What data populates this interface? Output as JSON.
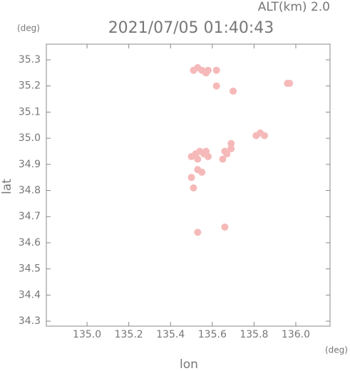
{
  "chart_data": {
    "type": "scatter",
    "title": "2021/07/05 01:40:43",
    "subtitle": "ALT(km) 2.0",
    "x_label": "lon",
    "y_label": "lat",
    "x_unit": "(deg)",
    "y_unit": "(deg)",
    "color": "#f6b9b9",
    "x": [
      135.51,
      135.53,
      135.55,
      135.57,
      135.58,
      135.62,
      135.62,
      135.7,
      135.96,
      135.97,
      135.81,
      135.83,
      135.85,
      135.5,
      135.52,
      135.54,
      135.56,
      135.58,
      135.53,
      135.57,
      135.65,
      135.67,
      135.69,
      135.66,
      135.69,
      135.53,
      135.55,
      135.5,
      135.51,
      135.53,
      135.66
    ],
    "values": [
      35.26,
      35.27,
      35.26,
      35.25,
      35.26,
      35.26,
      35.2,
      35.18,
      35.21,
      35.21,
      35.01,
      35.02,
      35.01,
      34.93,
      34.94,
      34.95,
      34.94,
      34.93,
      34.92,
      34.95,
      34.92,
      34.94,
      34.96,
      34.95,
      34.98,
      34.88,
      34.87,
      34.85,
      34.81,
      34.64,
      34.66
    ],
    "xlim": [
      134.805,
      136.164
    ],
    "ylim": [
      34.281,
      35.36
    ],
    "xticks": [
      {
        "value": 135,
        "label": "135.0"
      },
      135.2,
      135.4,
      135.6,
      135.8,
      {
        "value": 136,
        "label": "136.0"
      }
    ],
    "yticks": [
      34.3,
      34.4,
      34.5,
      34.6,
      34.7,
      34.8,
      34.9,
      {
        "value": 35,
        "label": "35.0"
      },
      35.1,
      35.2,
      35.3
    ]
  }
}
